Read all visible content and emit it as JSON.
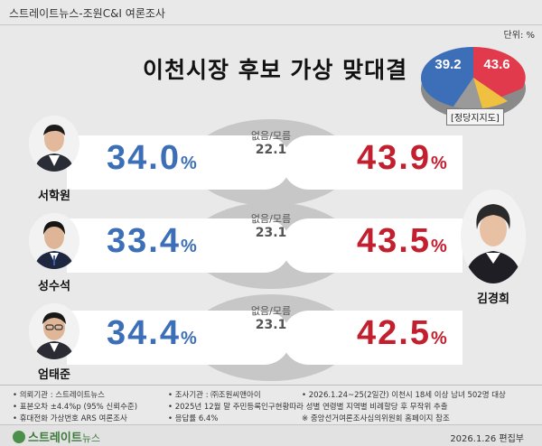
{
  "header": {
    "source_title": "스트레이트뉴스-조원C&I 여론조사",
    "unit_label": "단위: %"
  },
  "main_title": "이천시장 후보 가상 맞대결",
  "party_support": {
    "caption": "[정당지지도]",
    "left_value": "39.2",
    "right_value": "43.6"
  },
  "opponent": {
    "name": "김경희"
  },
  "matchups": [
    {
      "candidate": "서학원",
      "candidate_pct": "34.0",
      "none_label": "없음/모름",
      "none_value": "22.1",
      "opponent_pct": "43.9"
    },
    {
      "candidate": "성수석",
      "candidate_pct": "33.4",
      "none_label": "없음/모름",
      "none_value": "23.1",
      "opponent_pct": "43.5"
    },
    {
      "candidate": "엄태준",
      "candidate_pct": "34.4",
      "none_label": "없음/모름",
      "none_value": "23.1",
      "opponent_pct": "42.5"
    }
  ],
  "pct_sign": "%",
  "notes": {
    "col1": [
      "• 의뢰기관 : 스트레이트뉴스",
      "• 표본오차 ±4.4%p (95% 신뢰수준)",
      "• 휴대전화 가상번호 ARS 여론조사"
    ],
    "col2": [
      "• 조사기관 : ㈜조원씨앤아이",
      "• 2025년 12월 말 주민등록인구현황따라 성별 연령별 지역별 비례할당 후 무작위 추출",
      "• 응답률 6.4%"
    ],
    "col3": [
      "• 2026.1.24~25(2일간) 이천시 18세 이상 남녀 502명 대상",
      "※ 중앙선거여론조사심의위원회 홈페이지 참조"
    ]
  },
  "footer": {
    "logo_bold": "스트레이트",
    "logo_light": "뉴스",
    "edit_date": "2026.1.26  편집부"
  },
  "colors": {
    "blue": "#3d6fb8",
    "red": "#c3202f",
    "gray": "#c7c7c7"
  },
  "chart_data": {
    "type": "bar",
    "title": "이천시장 후보 가상 맞대결",
    "unit": "%",
    "categories": [
      "서학원 vs 김경희",
      "성수석 vs 김경희",
      "엄태준 vs 김경희"
    ],
    "series": [
      {
        "name": "",
        "values": [
          34.0,
          33.4,
          34.4
        ]
      },
      {
        "name": "없음/모름",
        "values": [
          22.1,
          23.1,
          23.1
        ]
      },
      {
        "name": "김경희",
        "values": [
          43.9,
          43.5,
          42.5
        ]
      }
    ],
    "party_support_pie": {
      "caption": "[정당지지도]",
      "values": [
        39.2,
        43.6
      ]
    }
  }
}
